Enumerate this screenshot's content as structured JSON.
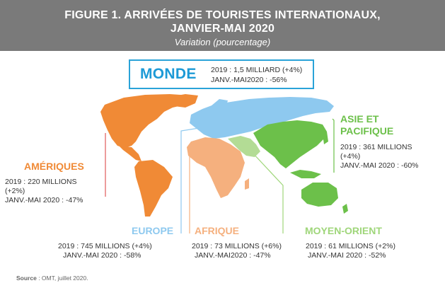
{
  "header": {
    "title_line1": "FIGURE 1. ARRIVÉES DE TOURISTES INTERNATIONAUX,",
    "title_line2": "JANVIER-MAI 2020",
    "subtitle": "Variation (pourcentage)"
  },
  "world": {
    "label": "MONDE",
    "line1": "2019 : 1,5 MILLIARD (+4%)",
    "line2": "JANV.-MAI2020 : -56%",
    "color": "#1d9ad6"
  },
  "regions": {
    "ameriques": {
      "label": "AMÉRIQUES",
      "line1": "2019 : 220 MILLIONS",
      "line2": "(+2%)",
      "line3": "JANV.-MAI 2020 : -47%",
      "color": "#f08a36"
    },
    "europe": {
      "label": "EUROPE",
      "line1": "2019 : 745 MILLIONS (+4%)",
      "line2": "JANV.-MAI 2020 : -58%",
      "color": "#8ec9ef"
    },
    "afrique": {
      "label": "AFRIQUE",
      "line1": "2019 : 73 MILLIONS  (+6%)",
      "line2": "JANV.-MAI2020 : -47%",
      "color": "#f5b07e"
    },
    "moyen_orient": {
      "label": "MOYEN-ORIENT",
      "line1": "2019 : 61 MILLIONS (+2%)",
      "line2": "JANV.-MAI 2020 : -52%",
      "color": "#9fd67a"
    },
    "asie_pacifique": {
      "label_line1": "ASIE ET",
      "label_line2": "PACIFIQUE",
      "line1": "2019 : 361 MILLIONS",
      "line2": "(+4%)",
      "line3": "JANV.-MAI 2020 : -60%",
      "color": "#6cc04a"
    }
  },
  "source": {
    "label": "Source",
    "text": " : OMT, juillet 2020."
  }
}
